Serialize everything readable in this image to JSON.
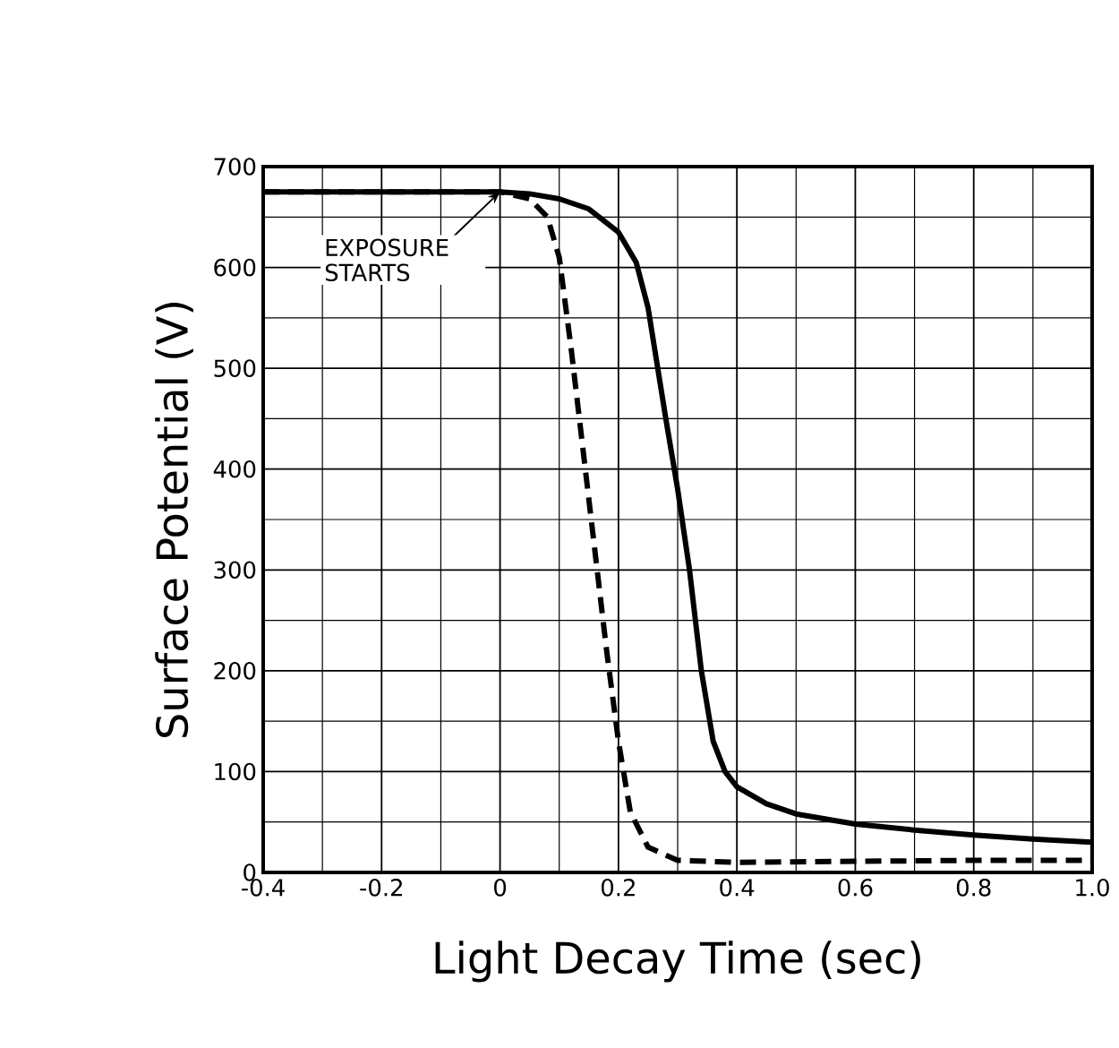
{
  "chart_data": {
    "type": "line",
    "xlabel": "Light Decay Time (sec)",
    "ylabel": "Surface Potential (V)",
    "xlim": [
      -0.4,
      1.0
    ],
    "ylim": [
      0,
      700
    ],
    "xticks": [
      -0.4,
      -0.2,
      0,
      0.2,
      0.4,
      0.6,
      0.8,
      {
        "value": 1.0,
        "label": "1.0"
      }
    ],
    "yticks": [
      0,
      100,
      200,
      300,
      400,
      500,
      600,
      700
    ],
    "grid": true,
    "marker": "none",
    "annotations": [
      {
        "text": "EXPOSURE STARTS",
        "x": 0,
        "y": 675
      }
    ],
    "series": [
      {
        "color": "#000000",
        "line_style": "solid",
        "x": [
          -0.4,
          0,
          0.05,
          0.1,
          0.15,
          0.2,
          0.23,
          0.25,
          0.28,
          0.3,
          0.32,
          0.34,
          0.36,
          0.38,
          0.4,
          0.45,
          0.5,
          0.6,
          0.7,
          0.8,
          0.9,
          1.0
        ],
        "values": [
          675,
          675,
          673,
          668,
          658,
          635,
          605,
          560,
          450,
          380,
          300,
          200,
          130,
          100,
          85,
          68,
          58,
          48,
          42,
          37,
          33,
          30
        ]
      },
      {
        "color": "#000000",
        "line_style": "dashed",
        "x": [
          -0.4,
          0,
          0.05,
          0.08,
          0.1,
          0.12,
          0.14,
          0.16,
          0.18,
          0.2,
          0.22,
          0.25,
          0.3,
          0.4,
          0.6,
          0.8,
          1.0
        ],
        "values": [
          675,
          675,
          668,
          650,
          610,
          520,
          420,
          320,
          220,
          130,
          60,
          25,
          12,
          10,
          11,
          12,
          12
        ]
      }
    ]
  }
}
